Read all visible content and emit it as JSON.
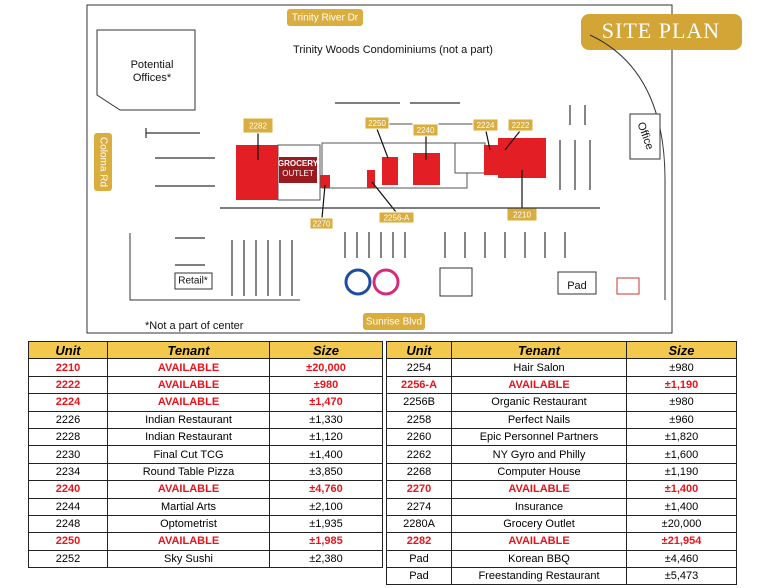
{
  "site_plan": {
    "title": "SITE PLAN",
    "streets": {
      "north": "Trinity River Dr",
      "south": "Sunrise Blvd",
      "west": "Coloma Rd"
    },
    "labels": {
      "condos": "Trinity Woods Condominiums (not a part)",
      "offices": "Potential Offices*",
      "office": "Office",
      "retail": "Retail*",
      "pad": "Pad",
      "note": "*Not a part of center",
      "grocery_1": "GROCERY",
      "grocery_2": "OUTLET"
    },
    "callouts": [
      "2282",
      "2250",
      "2240",
      "2224",
      "2222",
      "2270",
      "2256-A",
      "2210"
    ]
  },
  "tables": [
    {
      "header": [
        "Unit",
        "Tenant",
        "Size"
      ],
      "rows": [
        [
          "2210",
          "AVAILABLE",
          "±20,000"
        ],
        [
          "2222",
          "AVAILABLE",
          "±980"
        ],
        [
          "2224",
          "AVAILABLE",
          "±1,470"
        ],
        [
          "2226",
          "Indian Restaurant",
          "±1,330"
        ],
        [
          "2228",
          "Indian Restaurant",
          "±1,120"
        ],
        [
          "2230",
          "Final Cut TCG",
          "±1,400"
        ],
        [
          "2234",
          "Round Table Pizza",
          "±3,850"
        ],
        [
          "2240",
          "AVAILABLE",
          "±4,760"
        ],
        [
          "2244",
          "Martial Arts",
          "±2,100"
        ],
        [
          "2248",
          "Optometrist",
          "±1,935"
        ],
        [
          "2250",
          "AVAILABLE",
          "±1,985"
        ],
        [
          "2252",
          "Sky Sushi",
          "±2,380"
        ]
      ],
      "highlighted_rows": [
        0,
        1,
        2,
        7,
        10
      ]
    },
    {
      "header": [
        "Unit",
        "Tenant",
        "Size"
      ],
      "rows": [
        [
          "2254",
          "Hair Salon",
          "±980"
        ],
        [
          "2256-A",
          "AVAILABLE",
          "±1,190"
        ],
        [
          "2256B",
          "Organic Restaurant",
          "±980"
        ],
        [
          "2258",
          "Perfect Nails",
          "±960"
        ],
        [
          "2260",
          "Epic Personnel Partners",
          "±1,820"
        ],
        [
          "2262",
          "NY Gyro and Philly",
          "±1,600"
        ],
        [
          "2268",
          "Computer House",
          "±1,190"
        ],
        [
          "2270",
          "AVAILABLE",
          "±1,400"
        ],
        [
          "2274",
          "Insurance",
          "±1,400"
        ],
        [
          "2280A",
          "Grocery Outlet",
          "±20,000"
        ],
        [
          "2282",
          "AVAILABLE",
          "±21,954"
        ],
        [
          "Pad",
          "Korean BBQ",
          "±4,460"
        ],
        [
          "Pad",
          "Freestanding Restaurant",
          "±5,473"
        ]
      ],
      "highlighted_rows": [
        1,
        7,
        10
      ]
    }
  ],
  "highlight_color": "#e8141b"
}
